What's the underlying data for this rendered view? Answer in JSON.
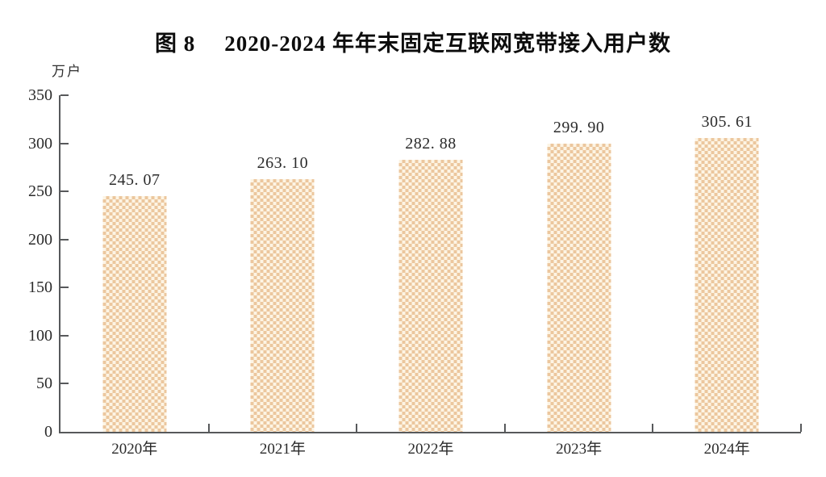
{
  "figure": {
    "title_prefix": "图 8",
    "title_text": "2020-2024 年年末固定互联网宽带接入用户数",
    "unit_label": "万户"
  },
  "chart_data": {
    "type": "bar",
    "title": "图 8 2020-2024 年年末固定互联网宽带接入用户数",
    "categories": [
      "2020年",
      "2021年",
      "2022年",
      "2023年",
      "2024年"
    ],
    "values": [
      245.07,
      263.1,
      282.88,
      299.9,
      305.61
    ],
    "value_labels": [
      "245. 07",
      "263. 10",
      "282. 88",
      "299. 90",
      "305. 61"
    ],
    "xlabel": "",
    "ylabel": "万户",
    "ylim": [
      0,
      350
    ],
    "yticks": [
      0,
      50,
      100,
      150,
      200,
      250,
      300,
      350
    ],
    "grid": false,
    "legend": "none",
    "bar_style": "checkerboard-pattern",
    "colors": {
      "bar_pattern_dark": "#ecc79e",
      "bar_pattern_light": "#fdf4e4",
      "axis": "#57595b",
      "text": "#2b2b2b",
      "title": "#0d0d0d",
      "background": "#ffffff"
    }
  }
}
